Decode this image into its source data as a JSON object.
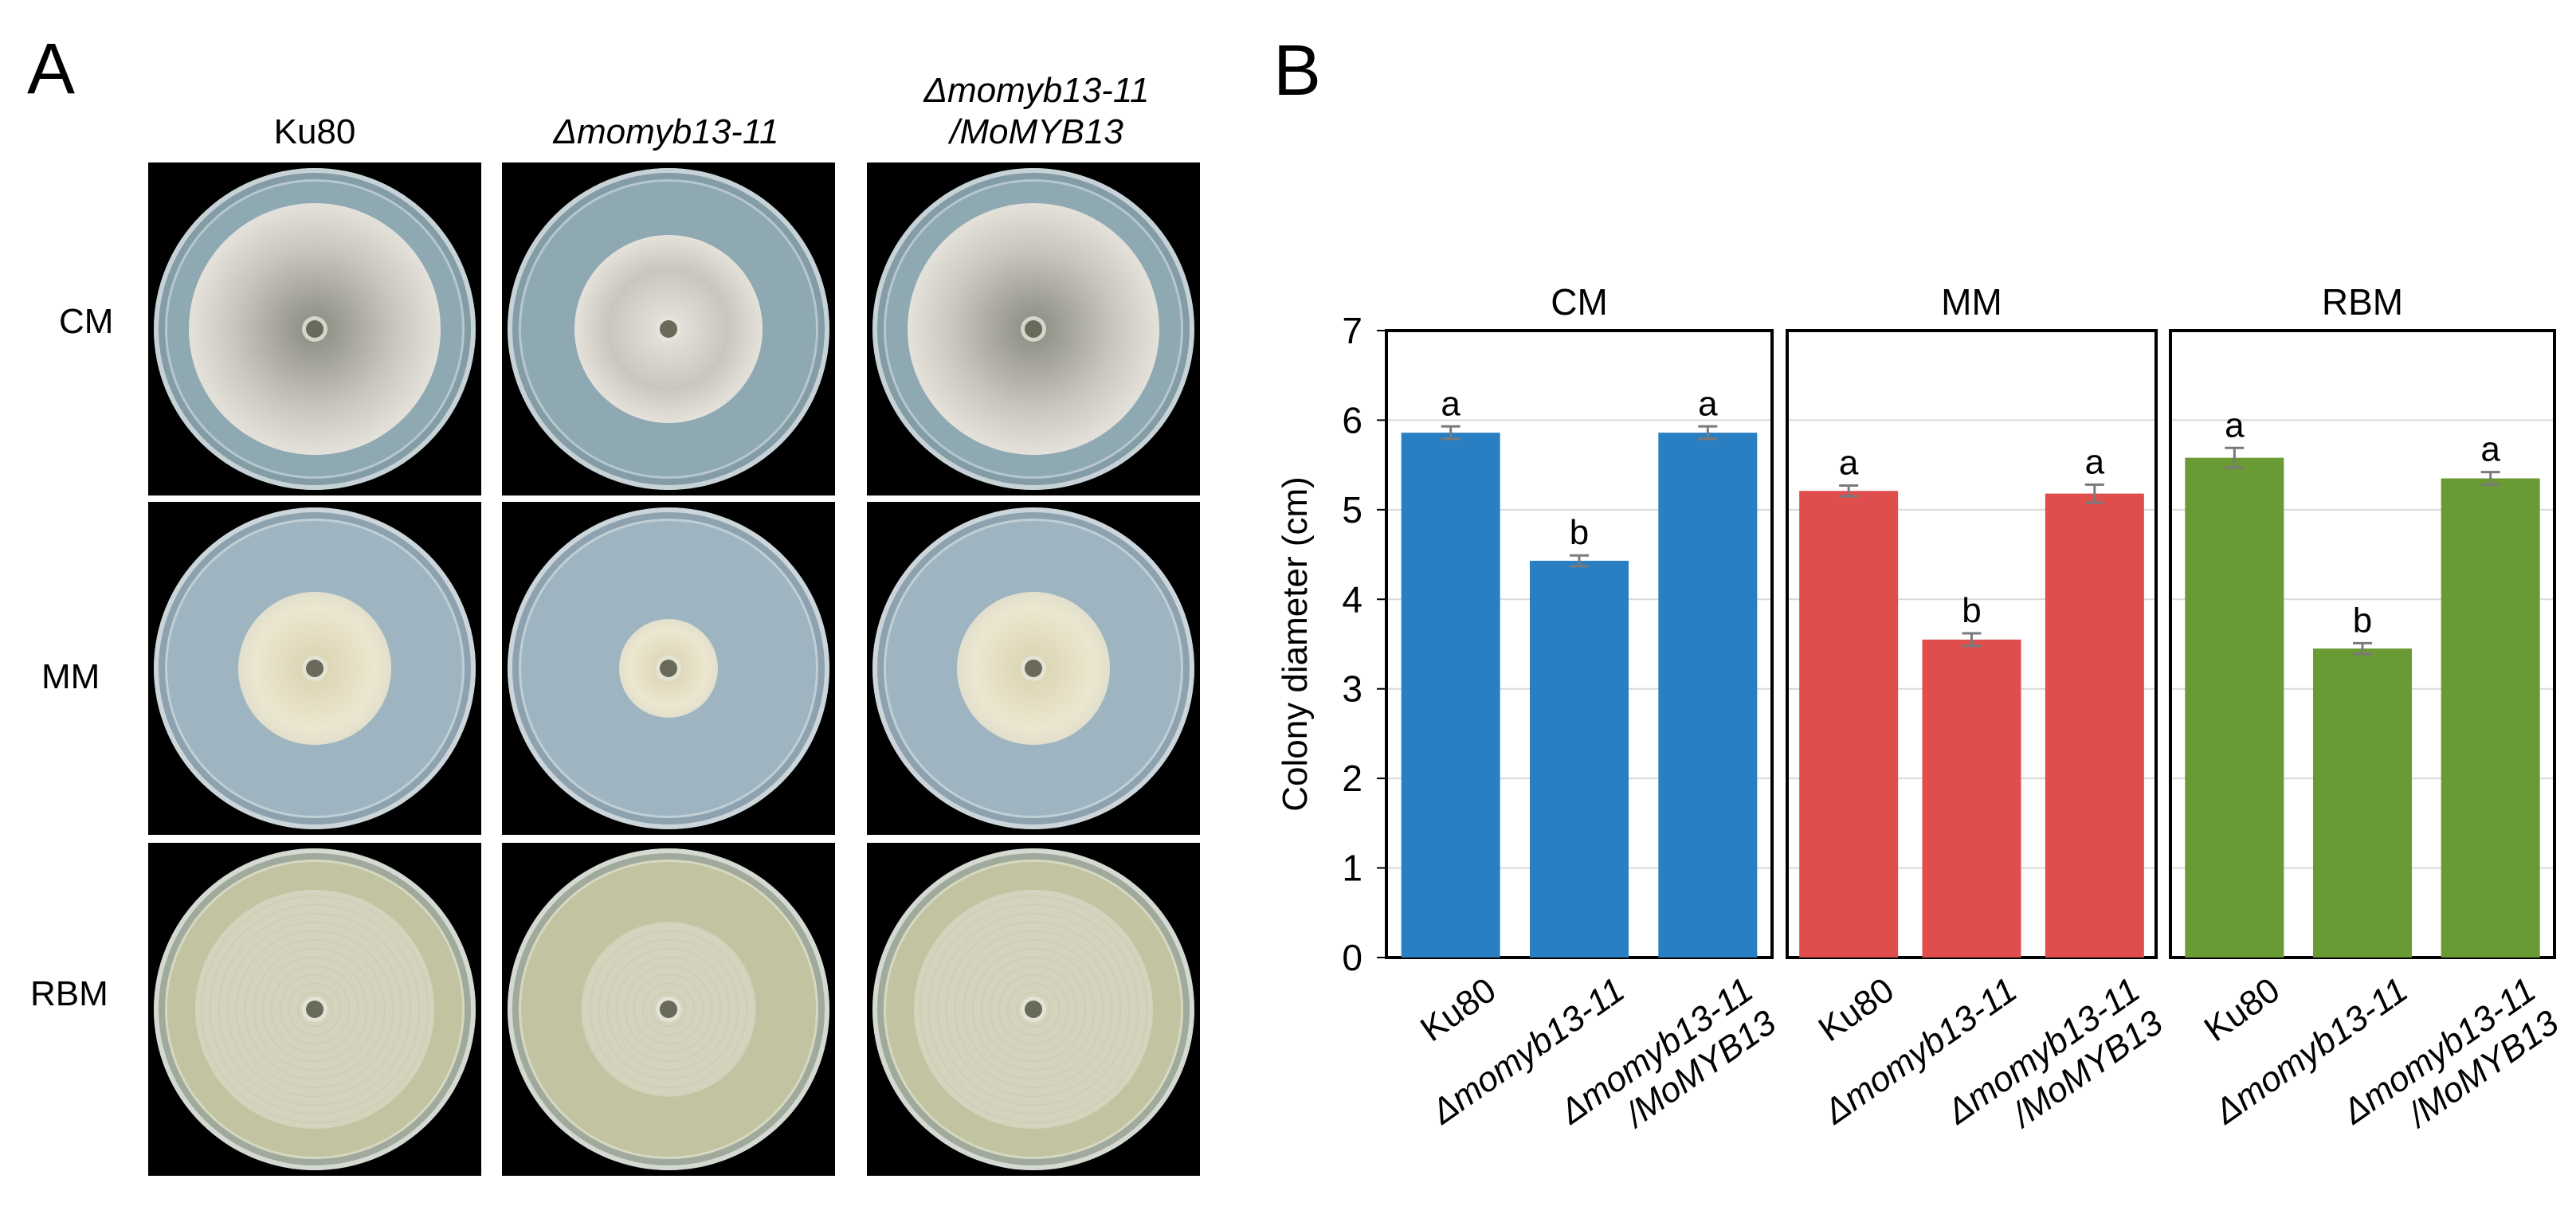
{
  "panel_a": {
    "letter": "A",
    "column_headers": [
      {
        "text": "Ku80",
        "italic": false
      },
      {
        "text": "Δmomyb13-11",
        "italic": true
      },
      {
        "line1": "Δmomyb13-11",
        "line2": "/MoMYB13",
        "italic": true
      }
    ],
    "row_labels": [
      "CM",
      "MM",
      "RBM"
    ],
    "plate_colors": {
      "CM": {
        "agar": "#8fa9b3",
        "colony": "#e9e6df",
        "colony_dark": "#8a8a80"
      },
      "MM": {
        "agar": "#9eb5c1",
        "colony": "#ece6cf"
      },
      "RBM": {
        "agar": "#c2c3a0",
        "colony": "#d7d7c3"
      }
    }
  },
  "panel_b": {
    "letter": "B",
    "chart_data": {
      "type": "bar",
      "ylabel": "Colony diameter (cm)",
      "ylim": [
        0,
        7
      ],
      "yticks": [
        0,
        1,
        2,
        3,
        4,
        5,
        6,
        7
      ],
      "grid": true,
      "categories": [
        "Ku80",
        "Δmomyb13-11",
        "Δmomyb13-11\n/MoMYB13"
      ],
      "groups": [
        {
          "name": "CM",
          "color": "#2a7fc2",
          "values": [
            5.86,
            4.43,
            5.86
          ],
          "errors": [
            0.07,
            0.06,
            0.07
          ],
          "letters": [
            "a",
            "b",
            "a"
          ]
        },
        {
          "name": "MM",
          "color": "#e04d4d",
          "values": [
            5.21,
            3.55,
            5.18
          ],
          "errors": [
            0.06,
            0.07,
            0.1
          ],
          "letters": [
            "a",
            "b",
            "a"
          ]
        },
        {
          "name": "RBM",
          "color": "#6a9a34",
          "values": [
            5.58,
            3.45,
            5.35
          ],
          "errors": [
            0.11,
            0.06,
            0.07
          ],
          "letters": [
            "a",
            "b",
            "a"
          ]
        }
      ]
    }
  }
}
